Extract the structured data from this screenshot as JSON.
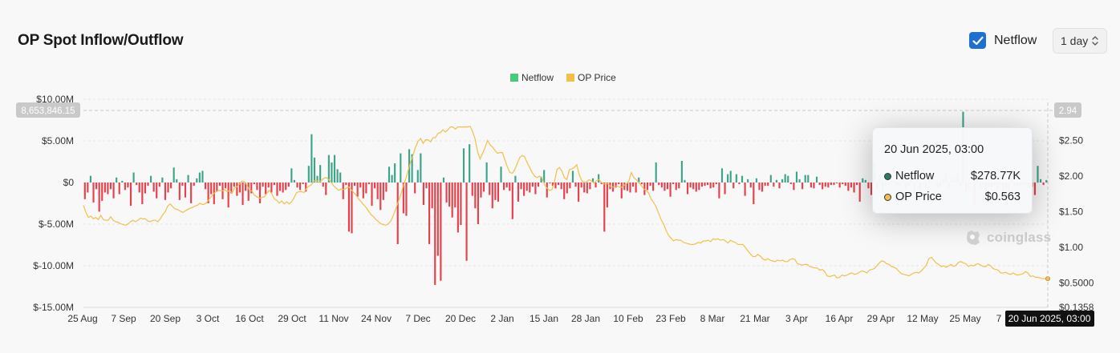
{
  "header": {
    "title": "OP Spot Inflow/Outflow",
    "netflow_toggle": {
      "label": "Netflow",
      "checked": true
    },
    "interval": "1 day"
  },
  "colors": {
    "inflow": "#3da48a",
    "outflow": "#e5414b",
    "legend_netflow": "#4bc77e",
    "price": "#f2c04a",
    "accent": "#1f6fd1"
  },
  "tooltip": {
    "date": "20 Jun 2025, 03:00",
    "rows": [
      {
        "name": "Netflow",
        "value": "$278.77K",
        "color": "#2a7a66"
      },
      {
        "name": "OP Price",
        "value": "$0.563",
        "color": "#f2c04a"
      }
    ]
  },
  "watermark": "coinglass",
  "chart_data": {
    "type": "bar+line",
    "legend": [
      "Netflow",
      "OP Price"
    ],
    "legend_placement": "top-center",
    "x_tick_labels": [
      "25 Aug",
      "7 Sep",
      "20 Sep",
      "3 Oct",
      "16 Oct",
      "29 Oct",
      "11 Nov",
      "24 Nov",
      "7 Dec",
      "20 Dec",
      "2 Jan",
      "15 Jan",
      "28 Jan",
      "10 Feb",
      "23 Feb",
      "8 Mar",
      "21 Mar",
      "3 Apr",
      "16 Apr",
      "29 Apr",
      "12 May",
      "25 May",
      "7"
    ],
    "y_left": {
      "ticks": [
        "$10.00M",
        "$5.00M",
        "$0",
        "$-5.00M",
        "$-10.00M",
        "$-15.00M"
      ],
      "range": [
        -15000000,
        10000000
      ]
    },
    "y_right": {
      "ticks": [
        "$2.50",
        "$2.00",
        "$1.50",
        "$1.00",
        "$0.5000",
        "$0.1358"
      ],
      "range": [
        0.1358,
        2.94
      ]
    },
    "crosshair": {
      "left_label": "8,653,846.15",
      "right_label": "2.94",
      "x_label": "20 Jun 2025, 03:00"
    },
    "grid": true,
    "netflow_series": {
      "name": "Netflow",
      "unit": "USD millions",
      "start_date": "2024-08-25",
      "values": [
        -2.0,
        -1.2,
        0.8,
        -2.4,
        -0.8,
        -3.5,
        -2.2,
        -1.2,
        -1.4,
        -0.8,
        -1.9,
        0.6,
        -1.4,
        0.2,
        -0.9,
        -0.6,
        -2.8,
        1.2,
        -0.3,
        -1.2,
        -2.6,
        -1.3,
        -0.4,
        0.8,
        -1.1,
        -1.9,
        -0.5,
        0.6,
        -2.1,
        -1.2,
        -0.7,
        1.8,
        0.4,
        -2.1,
        -0.4,
        -1.8,
        0.9,
        -2.5,
        -0.4,
        0.5,
        1.2,
        1.4,
        -0.8,
        -2.5,
        -1.4,
        -2.6,
        -1.1,
        -0.4,
        -2.0,
        -0.7,
        -3.0,
        -1.3,
        -0.5,
        -1.6,
        -1.2,
        -2.7,
        -1.0,
        -2.2,
        -1.3,
        -0.2,
        -0.9,
        -2.5,
        -0.5,
        -1.4,
        -0.6,
        -1.2,
        -0.3,
        -1.6,
        -1.0,
        -1.2,
        -0.9,
        -0.5,
        1.7,
        0.3,
        -0.6,
        -0.9,
        -0.2,
        -1.1,
        2.0,
        5.8,
        3.0,
        0.8,
        2.1,
        -0.5,
        -1.5,
        3.3,
        2.4,
        3.3,
        1.6,
        1.2,
        -2.0,
        -0.3,
        -5.9,
        -6.1,
        -0.4,
        -1.7,
        -0.6,
        -1.9,
        -1.3,
        -0.2,
        -2.8,
        -0.7,
        -2.0,
        -3.3,
        -2.1,
        -1.1,
        1.9,
        0.9,
        2.3,
        -7.4,
        3.5,
        -3.7,
        -4.0,
        4.0,
        3.4,
        -1.3,
        1.5,
        3.5,
        -2.7,
        -0.7,
        -7.4,
        -3.1,
        -12.3,
        -8.8,
        -11.8,
        0.6,
        -2.4,
        -2.9,
        -4.2,
        -3.0,
        -6.0,
        -5.1,
        4.1,
        -9.4,
        4.6,
        -1.6,
        -3.1,
        -5.0,
        -1.8,
        -1.1,
        2.4,
        -1.5,
        -3.1,
        -2.1,
        -2.3,
        1.9,
        -0.9,
        -0.6,
        -1.0,
        -4.4,
        0.8,
        -2.3,
        -0.8,
        -1.6,
        -1.0,
        -1.2,
        -0.5,
        -1.4,
        -0.5,
        0.7,
        1.5,
        -1.8,
        -0.1,
        -0.4,
        -0.7,
        -0.3,
        -0.8,
        -2.0,
        -1.3,
        -0.7,
        1.4,
        -0.5,
        -2.3,
        -0.6,
        -1.2,
        -1.3,
        -0.8,
        0.5,
        -0.6,
        1.0,
        -0.2,
        -5.9,
        -3.0,
        -0.8,
        -1.1,
        -0.6,
        -0.2,
        -1.9,
        -0.9,
        -1.0,
        -1.2,
        -0.5,
        -1.2,
        0.6,
        -0.2,
        -1.5,
        -0.9,
        -0.4,
        -1.0,
        2.4,
        -0.3,
        -0.6,
        -1.0,
        -0.8,
        -1.7,
        -0.2,
        -0.9,
        -0.7,
        2.6,
        0.3,
        -1.4,
        -0.6,
        -0.8,
        -1.1,
        -0.9,
        -0.5,
        -0.4,
        -0.3,
        -0.7,
        -0.6,
        -0.2,
        -1.9,
        1.7,
        -1.4,
        1.0,
        1.4,
        -0.7,
        1.0,
        -0.2,
        0.8,
        -1.6,
        0.4,
        -0.6,
        -2.6,
        0.5,
        -0.9,
        -1.1,
        -0.4,
        -0.4,
        0.9,
        -0.5,
        0.3,
        -0.7,
        0.4,
        1.0,
        0.8,
        -0.2,
        -0.9,
        1.3,
        0.4,
        -0.8,
        0.9,
        0.9,
        -0.6,
        -0.7,
        0.7,
        -0.3,
        -0.8,
        -0.5,
        -0.6,
        -0.3,
        -0.3,
        -0.1,
        -0.6,
        -0.2,
        -0.4,
        -1.0,
        -0.6,
        -1.2,
        -0.3,
        -2.3,
        0.5,
        0.3,
        -0.7,
        -1.5,
        2.5,
        -0.8,
        1.0,
        -1.2,
        -0.4,
        -0.3,
        0.2,
        0.1,
        -0.3,
        -0.5,
        0.8,
        -0.6,
        -0.4,
        1.0,
        -1.4,
        0.5,
        -0.9,
        -0.2,
        -0.6,
        0.3,
        0.5,
        -0.1,
        -0.6,
        -0.5,
        0.5,
        1.2,
        -0.7,
        0.6,
        0.3,
        1.0,
        -0.5,
        8.5,
        -1.2,
        -0.6,
        -0.1,
        -2.7,
        0.7,
        -0.6,
        -0.3,
        -1.2,
        -0.5,
        -0.5,
        -0.3,
        -0.8,
        -0.2,
        -1.5,
        -0.7,
        -1.1,
        0.8,
        -0.3,
        -0.4,
        -0.6,
        -0.3,
        -0.2,
        -0.7,
        -0.5,
        -1.5,
        2.0,
        0.4,
        -0.3,
        0.3
      ]
    },
    "price_series": {
      "name": "OP Price",
      "unit": "USD",
      "start_date": "2024-08-25",
      "values": [
        1.59,
        1.49,
        1.42,
        1.44,
        1.4,
        1.42,
        1.39,
        1.45,
        1.39,
        1.38,
        1.38,
        1.43,
        1.38,
        1.36,
        1.35,
        1.33,
        1.32,
        1.31,
        1.33,
        1.36,
        1.38,
        1.36,
        1.38,
        1.41,
        1.4,
        1.4,
        1.37,
        1.36,
        1.38,
        1.38,
        1.36,
        1.4,
        1.46,
        1.5,
        1.58,
        1.61,
        1.57,
        1.54,
        1.53,
        1.51,
        1.49,
        1.51,
        1.53,
        1.55,
        1.56,
        1.58,
        1.59,
        1.62,
        1.6,
        1.61,
        1.64,
        1.69,
        1.73,
        1.77,
        1.79,
        1.8,
        1.79,
        1.81,
        1.78,
        1.8,
        1.76,
        1.84,
        1.85,
        1.89,
        1.93,
        1.92,
        1.87,
        1.8,
        1.79,
        1.73,
        1.71,
        1.69,
        1.7,
        1.71,
        1.76,
        1.8,
        1.75,
        1.68,
        1.66,
        1.62,
        1.65,
        1.61,
        1.64,
        1.61,
        1.64,
        1.7,
        1.77,
        1.78,
        1.78,
        1.77,
        1.83,
        1.86,
        1.88,
        1.93,
        1.94,
        1.91,
        1.94,
        1.97,
        1.98,
        1.95,
        1.91,
        1.86,
        1.83,
        1.8,
        1.82,
        1.81,
        1.83,
        1.85,
        1.81,
        1.77,
        1.73,
        1.68,
        1.64,
        1.6,
        1.56,
        1.51,
        1.46,
        1.43,
        1.39,
        1.36,
        1.33,
        1.32,
        1.31,
        1.33,
        1.37,
        1.45,
        1.54,
        1.64,
        1.74,
        1.86,
        1.96,
        2.08,
        2.2,
        2.3,
        2.41,
        2.49,
        2.53,
        2.46,
        2.51,
        2.51,
        2.48,
        2.54,
        2.54,
        2.6,
        2.61,
        2.65,
        2.62,
        2.65,
        2.69,
        2.69,
        2.66,
        2.69,
        2.69,
        2.69,
        2.69,
        2.69,
        2.7,
        2.62,
        2.52,
        2.34,
        2.24,
        2.32,
        2.4,
        2.5,
        2.44,
        2.41,
        2.36,
        2.32,
        2.33,
        2.33,
        2.23,
        2.13,
        2.05,
        2.04,
        2.09,
        2.18,
        2.26,
        2.29,
        2.27,
        2.19,
        2.12,
        2.05,
        2.0,
        1.98,
        2.0,
        1.97,
        1.88,
        1.83,
        1.8,
        1.81,
        1.92,
        2.09,
        2.12,
        2.07,
        1.98,
        1.95,
        2.09,
        2.1,
        2.12,
        2.16,
        2.02,
        1.94,
        1.91,
        1.92,
        1.95,
        1.93,
        1.9,
        1.94,
        1.95,
        1.91,
        1.89,
        1.9,
        1.88,
        1.84,
        1.85,
        1.86,
        1.85,
        1.84,
        1.87,
        1.89,
        1.93,
        2.05,
        1.98,
        1.95,
        1.91,
        1.87,
        1.82,
        1.8,
        1.76,
        1.68,
        1.63,
        1.57,
        1.48,
        1.39,
        1.33,
        1.24,
        1.17,
        1.13,
        1.09,
        1.11,
        1.1,
        1.1,
        1.07,
        1.06,
        1.05,
        1.04,
        1.04,
        1.05,
        1.07,
        1.06,
        1.09,
        1.09,
        1.1,
        1.08,
        1.12,
        1.11,
        1.12,
        1.1,
        1.11,
        1.09,
        1.06,
        1.1,
        1.08,
        1.07,
        1.04,
        1.04,
        1.04,
        1.0,
        0.95,
        0.91,
        0.87,
        0.87,
        0.9,
        0.88,
        0.84,
        0.82,
        0.84,
        0.82,
        0.81,
        0.8,
        0.82,
        0.81,
        0.82,
        0.8,
        0.8,
        0.83,
        0.84,
        0.83,
        0.77,
        0.76,
        0.75,
        0.76,
        0.76,
        0.73,
        0.72,
        0.71,
        0.71,
        0.68,
        0.69,
        0.66,
        0.6,
        0.59,
        0.6,
        0.61,
        0.57,
        0.58,
        0.61,
        0.6,
        0.61,
        0.63,
        0.64,
        0.62,
        0.63,
        0.65,
        0.67,
        0.66,
        0.64,
        0.68,
        0.69,
        0.7,
        0.74,
        0.78,
        0.81,
        0.8,
        0.77,
        0.76,
        0.73,
        0.72,
        0.7,
        0.66,
        0.63,
        0.62,
        0.61,
        0.6,
        0.62,
        0.64,
        0.65,
        0.64,
        0.67,
        0.71,
        0.75,
        0.84,
        0.86,
        0.82,
        0.78,
        0.76,
        0.73,
        0.74,
        0.72,
        0.74,
        0.76,
        0.73,
        0.75,
        0.79,
        0.8,
        0.78,
        0.77,
        0.73,
        0.75,
        0.74,
        0.76,
        0.77,
        0.75,
        0.73,
        0.73,
        0.76,
        0.74,
        0.7,
        0.69,
        0.68,
        0.64,
        0.64,
        0.65,
        0.63,
        0.62,
        0.64,
        0.62,
        0.61,
        0.62,
        0.63,
        0.66,
        0.64,
        0.59,
        0.6,
        0.58,
        0.58,
        0.57,
        0.56,
        0.56,
        0.56
      ]
    }
  }
}
